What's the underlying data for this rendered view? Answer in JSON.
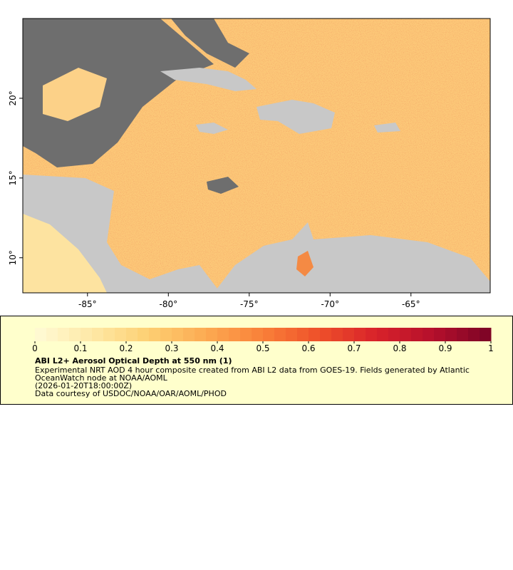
{
  "map": {
    "lon_range": [
      -89,
      -60.1
    ],
    "lat_range": [
      7.8,
      25
    ],
    "lon_ticks": [
      {
        "value": -85,
        "label": "-85°"
      },
      {
        "value": -80,
        "label": "-80°"
      },
      {
        "value": -75,
        "label": "-75°"
      },
      {
        "value": -70,
        "label": "-70°"
      },
      {
        "value": -65,
        "label": "-65°"
      }
    ],
    "lat_ticks": [
      {
        "value": 10,
        "label": "10°"
      },
      {
        "value": 15,
        "label": "15°"
      },
      {
        "value": 20,
        "label": "20°"
      }
    ]
  },
  "legend": {
    "title": "ABI L2+ Aerosol Optical Depth at 550 nm (1)",
    "description": "Experimental NRT AOD 4 hour composite created from ABI L2 data from GOES-19. Fields generated by Atlantic OceanWatch node at NOAA/AOML",
    "time": "(2026-01-20T18:00:00Z)",
    "credit": "Data courtesy of USDOC/NOAA/OAR/AOML/PHOD",
    "range": [
      0,
      1
    ],
    "ticks": [
      0,
      0.1,
      0.2,
      0.3,
      0.4,
      0.5,
      0.6,
      0.7,
      0.8,
      0.9,
      1
    ],
    "colormap": [
      "#fffbd6",
      "#fee8a6",
      "#fdcf72",
      "#fcaa52",
      "#f98038",
      "#ee4f2a",
      "#d8222a",
      "#b40f2c",
      "#7a0425"
    ]
  }
}
